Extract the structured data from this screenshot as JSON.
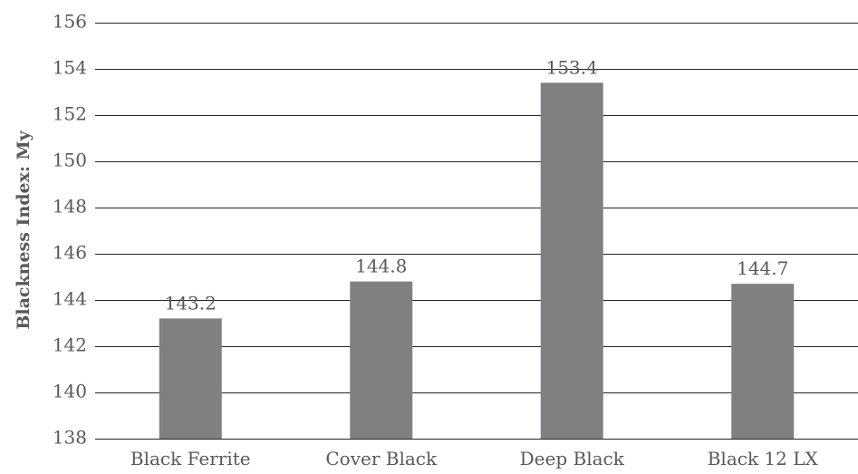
{
  "chart_data": {
    "type": "bar",
    "title": "",
    "xlabel": "",
    "ylabel": "Blackness Index: My",
    "categories": [
      "Black Ferrite",
      "Cover Black",
      "Deep Black",
      "Black 12 LX"
    ],
    "values": [
      143.2,
      144.8,
      153.4,
      144.7
    ],
    "value_labels": [
      "143.2",
      "144.8",
      "153.4",
      "144.7"
    ],
    "ylim": [
      138,
      156
    ],
    "yticks": [
      138,
      140,
      142,
      144,
      146,
      148,
      150,
      152,
      154,
      156
    ],
    "grid": true,
    "legend": "none",
    "colors": {
      "bar": "#808083",
      "grid": "#262626",
      "text": "#595959"
    }
  }
}
